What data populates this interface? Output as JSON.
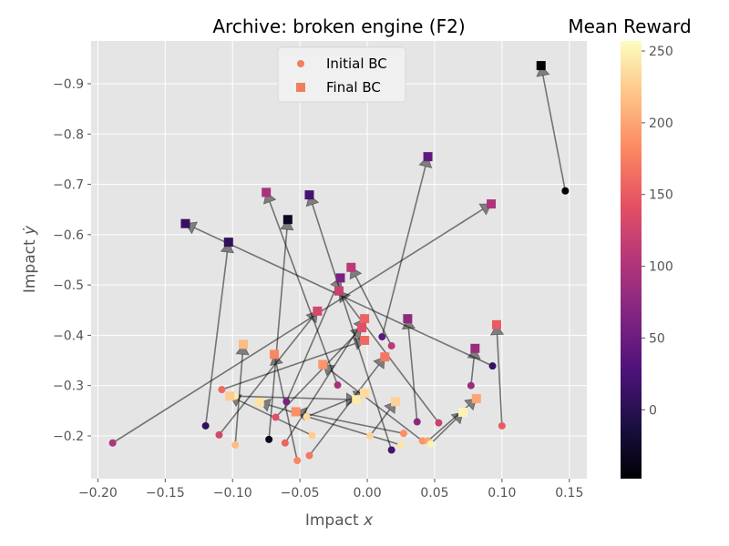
{
  "chart_data": {
    "type": "scatter",
    "title": "Archive: broken engine (F2)",
    "xlabel": "Impact x",
    "ylabel": "Impact y",
    "xlim": [
      -0.205,
      0.163
    ],
    "ylim": [
      -0.985,
      -0.115
    ],
    "y_inverted": true,
    "grid": true,
    "xticks": [
      -0.2,
      -0.15,
      -0.1,
      -0.05,
      0.0,
      0.05,
      0.1,
      0.15
    ],
    "xtick_labels": [
      "−0.20",
      "−0.15",
      "−0.10",
      "−0.05",
      "0.00",
      "0.05",
      "0.10",
      "0.15"
    ],
    "yticks": [
      -0.9,
      -0.8,
      -0.7,
      -0.6,
      -0.5,
      -0.4,
      -0.3,
      -0.2
    ],
    "ytick_labels": [
      "−0.9",
      "−0.8",
      "−0.7",
      "−0.6",
      "−0.5",
      "−0.4",
      "−0.3",
      "−0.2"
    ],
    "legend": {
      "placement": "top-center",
      "entries": [
        {
          "label": "Initial BC",
          "marker": "circle"
        },
        {
          "label": "Final BC",
          "marker": "square"
        }
      ]
    },
    "colorbar": {
      "label": "Mean Reward",
      "colormap": "magma",
      "range": [
        -48,
        257
      ],
      "ticks": [
        0,
        50,
        100,
        150,
        200,
        250
      ],
      "tick_labels": [
        "0",
        "50",
        "100",
        "150",
        "200",
        "250"
      ]
    },
    "trajectories": [
      {
        "initial": [
          0.147,
          -0.687
        ],
        "final": [
          0.129,
          -0.936
        ],
        "reward": -45
      },
      {
        "initial": [
          -0.12,
          -0.22
        ],
        "final": [
          -0.103,
          -0.585
        ],
        "reward": 5
      },
      {
        "initial": [
          0.093,
          -0.339
        ],
        "final": [
          -0.135,
          -0.622
        ],
        "reward": 10
      },
      {
        "initial": [
          -0.073,
          -0.193
        ],
        "final": [
          -0.059,
          -0.63
        ],
        "reward": -30
      },
      {
        "initial": [
          0.018,
          -0.172
        ],
        "final": [
          -0.043,
          -0.679
        ],
        "reward": 20
      },
      {
        "initial": [
          0.011,
          -0.397
        ],
        "final": [
          0.045,
          -0.755
        ],
        "reward": 40
      },
      {
        "initial": [
          -0.06,
          -0.268
        ],
        "final": [
          -0.02,
          -0.514
        ],
        "reward": 60
      },
      {
        "initial": [
          0.037,
          -0.228
        ],
        "final": [
          0.03,
          -0.433
        ],
        "reward": 75
      },
      {
        "initial": [
          0.077,
          -0.3
        ],
        "final": [
          0.08,
          -0.374
        ],
        "reward": 85
      },
      {
        "initial": [
          -0.189,
          -0.186
        ],
        "final": [
          0.092,
          -0.661
        ],
        "reward": 100
      },
      {
        "initial": [
          -0.022,
          -0.301
        ],
        "final": [
          -0.075,
          -0.684
        ],
        "reward": 95
      },
      {
        "initial": [
          0.018,
          -0.379
        ],
        "final": [
          -0.012,
          -0.535
        ],
        "reward": 110
      },
      {
        "initial": [
          0.053,
          -0.226
        ],
        "final": [
          -0.021,
          -0.488
        ],
        "reward": 120
      },
      {
        "initial": [
          -0.11,
          -0.202
        ],
        "final": [
          -0.037,
          -0.448
        ],
        "reward": 130
      },
      {
        "initial": [
          -0.068,
          -0.237
        ],
        "final": [
          -0.004,
          -0.415
        ],
        "reward": 140
      },
      {
        "initial": [
          0.1,
          -0.22
        ],
        "final": [
          0.096,
          -0.421
        ],
        "reward": 150
      },
      {
        "initial": [
          -0.061,
          -0.186
        ],
        "final": [
          -0.002,
          -0.433
        ],
        "reward": 155
      },
      {
        "initial": [
          -0.108,
          -0.292
        ],
        "final": [
          -0.002,
          -0.39
        ],
        "reward": 160
      },
      {
        "initial": [
          -0.043,
          -0.161
        ],
        "final": [
          0.013,
          -0.357
        ],
        "reward": 170
      },
      {
        "initial": [
          -0.052,
          -0.151
        ],
        "final": [
          -0.069,
          -0.362
        ],
        "reward": 180
      },
      {
        "initial": [
          0.027,
          -0.205
        ],
        "final": [
          -0.053,
          -0.248
        ],
        "reward": 185
      },
      {
        "initial": [
          0.041,
          -0.19
        ],
        "final": [
          -0.033,
          -0.342
        ],
        "reward": 190
      },
      {
        "initial": [
          0.045,
          -0.19
        ],
        "final": [
          0.081,
          -0.274
        ],
        "reward": 200
      },
      {
        "initial": [
          -0.098,
          -0.182
        ],
        "final": [
          -0.092,
          -0.382
        ],
        "reward": 215
      },
      {
        "initial": [
          -0.041,
          -0.201
        ],
        "final": [
          -0.102,
          -0.279
        ],
        "reward": 225
      },
      {
        "initial": [
          0.002,
          -0.2
        ],
        "final": [
          0.021,
          -0.268
        ],
        "reward": 230
      },
      {
        "initial": [
          0.025,
          -0.182
        ],
        "final": [
          -0.08,
          -0.267
        ],
        "reward": 240
      },
      {
        "initial": [
          0.047,
          -0.184
        ],
        "final": [
          0.071,
          -0.247
        ],
        "reward": 250
      },
      {
        "initial": [
          -0.098,
          -0.279
        ],
        "final": [
          -0.008,
          -0.272
        ],
        "reward": 245
      },
      {
        "initial": [
          -0.045,
          -0.238
        ],
        "final": [
          -0.002,
          -0.285
        ],
        "reward": 235
      }
    ]
  }
}
